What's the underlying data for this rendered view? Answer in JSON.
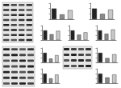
{
  "chart_data": [
    {
      "type": "bar",
      "categories": [
        null,
        null,
        null
      ],
      "values": [
        1.0,
        0.45,
        0.85
      ],
      "colors": [
        "#222222",
        "#8a8a8a",
        "#c8c8c8"
      ],
      "ylim": [
        0,
        1.5
      ],
      "yticks": [
        0,
        0.5,
        1,
        1.5
      ],
      "grid": false,
      "tick_labels": false
    },
    {
      "type": "bar",
      "categories": [
        null,
        null,
        null
      ],
      "values": [
        1.0,
        0.5,
        0.9
      ],
      "colors": [
        "#222222",
        "#8a8a8a",
        "#c8c8c8"
      ],
      "ylim": [
        0,
        1.5
      ],
      "yticks": [
        0,
        0.5,
        1,
        1.5
      ],
      "grid": false,
      "tick_labels": false
    },
    {
      "type": "bar",
      "categories": [
        null,
        null,
        null
      ],
      "values": [
        1.0,
        0.6,
        0.95
      ],
      "colors": [
        "#222222",
        "#8a8a8a",
        "#c8c8c8"
      ],
      "ylim": [
        0,
        1.5
      ],
      "yticks": [
        0,
        0.5,
        1,
        1.5
      ],
      "grid": false,
      "tick_labels": false
    },
    {
      "type": "bar",
      "categories": [
        null,
        null,
        null
      ],
      "values": [
        1.0,
        0.55,
        0.8
      ],
      "colors": [
        "#222222",
        "#8a8a8a",
        "#c8c8c8"
      ],
      "ylim": [
        0,
        1.5
      ],
      "yticks": [
        0,
        0.5,
        1,
        1.5
      ],
      "grid": false,
      "tick_labels": false
    },
    {
      "type": "bar",
      "categories": [
        null,
        null,
        null
      ],
      "values": [
        1.0,
        0.65,
        1.1
      ],
      "colors": [
        "#222222",
        "#8a8a8a",
        "#c8c8c8"
      ],
      "ylim": [
        0,
        1.5
      ],
      "yticks": [
        0,
        0.5,
        1,
        1.5
      ],
      "grid": false,
      "tick_labels": false
    },
    {
      "type": "bar",
      "categories": [
        null,
        null,
        null
      ],
      "values": [
        1.0,
        0.4,
        0.75
      ],
      "colors": [
        "#222222",
        "#8a8a8a",
        "#c8c8c8"
      ],
      "ylim": [
        0,
        1.5
      ],
      "yticks": [
        0,
        0.5,
        1,
        1.5
      ],
      "grid": false,
      "tick_labels": false
    },
    {
      "type": "bar",
      "categories": [
        null,
        null,
        null
      ],
      "values": [
        1.0,
        0.5,
        0.9
      ],
      "colors": [
        "#222222",
        "#8a8a8a",
        "#c8c8c8"
      ],
      "ylim": [
        0,
        1.5
      ],
      "yticks": [
        0,
        0.5,
        1,
        1.5
      ],
      "grid": false,
      "tick_labels": false
    },
    {
      "type": "bar",
      "categories": [
        null,
        null,
        null
      ],
      "values": [
        1.0,
        0.45,
        0.85
      ],
      "colors": [
        "#222222",
        "#8a8a8a",
        "#c8c8c8"
      ],
      "ylim": [
        0,
        1.5
      ],
      "yticks": [
        0,
        0.5,
        1,
        1.5
      ],
      "grid": false,
      "tick_labels": false
    },
    {
      "type": "bar",
      "categories": [
        null,
        null,
        null
      ],
      "values": [
        1.0,
        0.6,
        0.9
      ],
      "colors": [
        "#222222",
        "#8a8a8a",
        "#c8c8c8"
      ],
      "ylim": [
        0,
        1.5
      ],
      "yticks": [
        0,
        0.5,
        1,
        1.5
      ],
      "grid": false,
      "tick_labels": false
    }
  ]
}
